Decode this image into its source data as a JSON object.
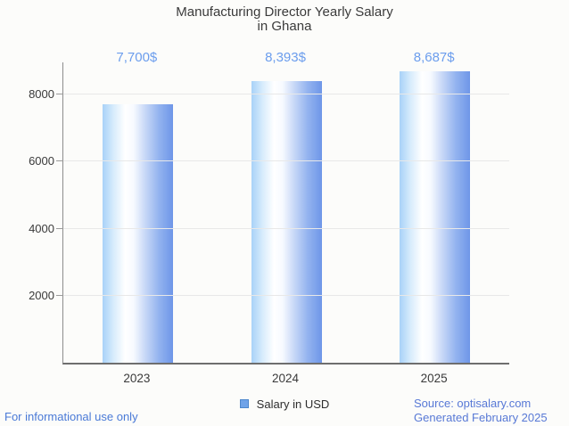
{
  "chart_data": {
    "type": "bar",
    "title": "Manufacturing Director Yearly Salary in Ghana",
    "title_lines": [
      "Manufacturing Director Yearly Salary",
      "in Ghana"
    ],
    "categories": [
      "2023",
      "2024",
      "2025"
    ],
    "series": [
      {
        "name": "Salary in USD",
        "values": [
          7700,
          8393,
          8687
        ]
      }
    ],
    "value_labels": [
      "7,700$",
      "8,393$",
      "8,687$"
    ],
    "xlabel": "",
    "ylabel": "",
    "yticks": [
      2000,
      4000,
      6000,
      8000
    ],
    "ylim": [
      0,
      8960
    ],
    "grid": true,
    "legend_position": "bottom",
    "bar_gradient": [
      "#a8d2f8",
      "#ffffff",
      "#6e96e8"
    ],
    "value_label_color": "#6b9ded"
  },
  "legend": {
    "swatch_color": "#6fa3e8",
    "swatch_border": "#4d87cc",
    "label": "Salary in USD"
  },
  "footer": {
    "left": "For informational use only",
    "right_line1": "Source: optisalary.com",
    "right_line2": "Generated February 2025"
  },
  "colors": {
    "background": "#fcfcfa",
    "title_text": "#3b3b3b",
    "tick_text": "#3a3a3a",
    "grid": "#e8e8e8",
    "axis_x": "#6e6e6e",
    "axis_y": "#8c8c8c",
    "value_label_blue": "#6b9ded",
    "footer_left_blue": "#4a7ad7",
    "footer_right_blue": "#5879d6"
  }
}
